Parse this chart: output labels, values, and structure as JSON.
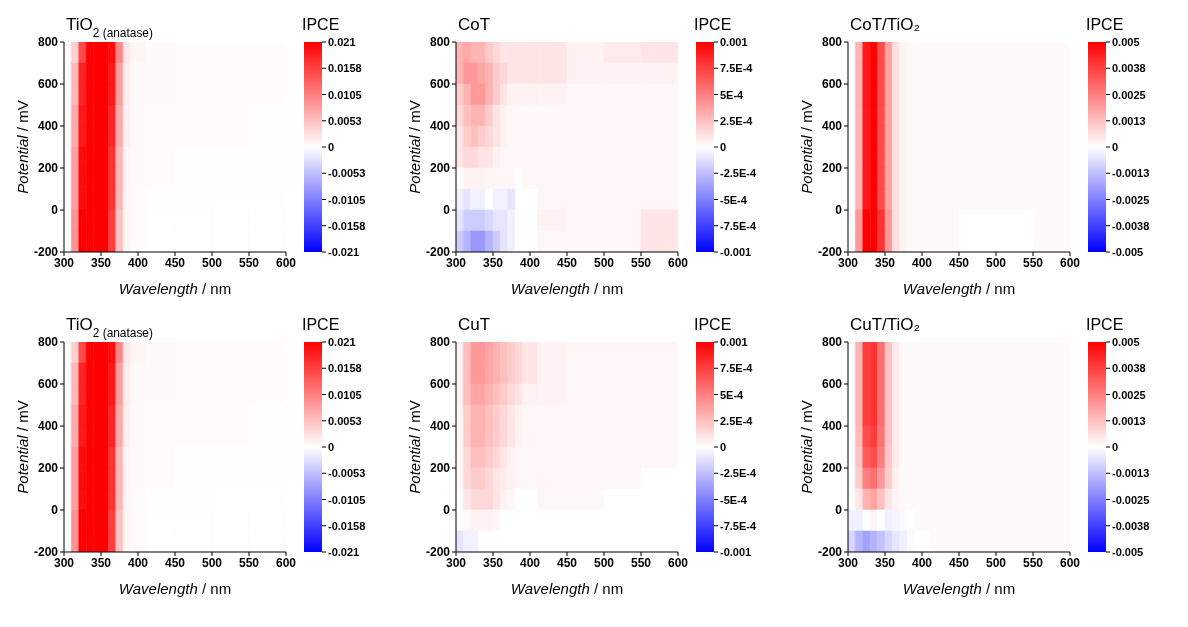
{
  "chart_data": [
    {
      "type": "heatmap",
      "title": "TiO$_{2 (anatase)}$",
      "xlabel": "Wavelength / nm",
      "ylabel": "Potential / mV",
      "clabel": "IPCE",
      "x": [
        305,
        315,
        325,
        335,
        345,
        355,
        365,
        375,
        385,
        395,
        425,
        475,
        525,
        575
      ],
      "y": [
        750,
        650,
        550,
        450,
        350,
        250,
        150,
        50,
        -50,
        -150
      ],
      "xlim": [
        300,
        600
      ],
      "xticks": [
        300,
        350,
        400,
        450,
        500,
        550,
        600
      ],
      "ylim": [
        -200,
        800
      ],
      "yticks": [
        -200,
        0,
        200,
        400,
        600,
        800
      ],
      "clim": [
        -0.021,
        0.021
      ],
      "cticks": [
        0.021,
        {
          "value": 0.01575,
          "label": "0.0158"
        },
        0.0105,
        {
          "value": 0.00525,
          "label": "0.0053"
        },
        0,
        {
          "value": -0.00525,
          "label": "-0.0053"
        },
        -0.0105,
        {
          "value": -0.01575,
          "label": "-0.0158"
        },
        -0.021
      ],
      "cells": [
        [
          0.0003,
          0.004,
          0.015,
          0.021,
          0.021,
          0.021,
          0.02,
          0.01,
          0.002,
          0.0008,
          0.0004,
          0.0003,
          0.0003,
          0.0003
        ],
        [
          0.0003,
          0.006,
          0.018,
          0.021,
          0.021,
          0.021,
          0.019,
          0.008,
          0.0015,
          0.0006,
          0.0004,
          0.0003,
          0.0003,
          0.0003
        ],
        [
          0.0003,
          0.006,
          0.018,
          0.021,
          0.021,
          0.021,
          0.019,
          0.008,
          0.0015,
          0.0006,
          0.0004,
          0.0003,
          0.0003,
          0.0003
        ],
        [
          0.0003,
          0.007,
          0.019,
          0.021,
          0.021,
          0.021,
          0.018,
          0.007,
          0.0012,
          0.0005,
          0.0003,
          0.0003,
          0.0003,
          0.0002
        ],
        [
          0.0003,
          0.007,
          0.019,
          0.021,
          0.021,
          0.021,
          0.018,
          0.007,
          0.0012,
          0.0005,
          0.0003,
          0.0003,
          0.0003,
          0.0002
        ],
        [
          0.0002,
          0.008,
          0.02,
          0.021,
          0.021,
          0.021,
          0.017,
          0.006,
          0.001,
          0.0004,
          0.0003,
          0.0002,
          0.0002,
          0.0002
        ],
        [
          0.0002,
          0.008,
          0.02,
          0.021,
          0.021,
          0.021,
          0.017,
          0.006,
          0.001,
          0.0004,
          0.0003,
          0.0002,
          0.0002,
          0.0002
        ],
        [
          0.0002,
          0.008,
          0.02,
          0.021,
          0.021,
          0.021,
          0.017,
          0.006,
          0.001,
          0.0003,
          0.0002,
          0.0002,
          0.0001,
          0.0001
        ],
        [
          0.0001,
          0.009,
          0.021,
          0.021,
          0.021,
          0.021,
          0.016,
          0.005,
          0.0008,
          0.0003,
          0,
          -0.0001,
          -0.0001,
          -0.0001
        ],
        [
          0.0001,
          0.009,
          0.021,
          0.021,
          0.021,
          0.021,
          0.016,
          0.005,
          0.0008,
          0.0003,
          0,
          -0.0001,
          -0.0001,
          -0.0001
        ]
      ]
    },
    {
      "type": "heatmap",
      "title": "CoT",
      "xlabel": "Wavelength / nm",
      "ylabel": "Potential / mV",
      "clabel": "IPCE",
      "x": [
        305,
        315,
        325,
        335,
        345,
        355,
        365,
        375,
        385,
        395,
        425,
        475,
        525,
        575
      ],
      "y": [
        750,
        650,
        550,
        450,
        350,
        250,
        150,
        50,
        -50,
        -150
      ],
      "xlim": [
        300,
        600
      ],
      "xticks": [
        300,
        350,
        400,
        450,
        500,
        550,
        600
      ],
      "ylim": [
        -200,
        800
      ],
      "yticks": [
        -200,
        0,
        200,
        400,
        600,
        800
      ],
      "clim": [
        -0.001,
        0.001
      ],
      "cticks": [
        0.001,
        {
          "value": 0.00075,
          "label": "7.5E-4"
        },
        {
          "value": 0.0005,
          "label": "5E-4"
        },
        {
          "value": 0.00025,
          "label": "2.5E-4"
        },
        0,
        {
          "value": -0.00025,
          "label": "-2.5E-4"
        },
        {
          "value": -0.0005,
          "label": "-5E-4"
        },
        {
          "value": -0.00075,
          "label": "-7.5E-4"
        },
        -0.001
      ],
      "cells": [
        [
          0.0003,
          0.00035,
          0.0003,
          0.0003,
          0.0002,
          0.00015,
          0.0001,
          0.0001,
          0.0001,
          0.0001,
          0.0001,
          5e-05,
          8e-05,
          0.0001
        ],
        [
          0.0003,
          0.0004,
          0.0004,
          0.00035,
          0.0003,
          0.0002,
          0.00015,
          0.0001,
          0.0001,
          0.0001,
          0.0001,
          5e-05,
          5e-05,
          5e-05
        ],
        [
          0.0002,
          0.0003,
          0.0004,
          0.0004,
          0.0003,
          0.0002,
          0.0001,
          5e-05,
          5e-05,
          5e-05,
          5e-05,
          3e-05,
          3e-05,
          3e-05
        ],
        [
          0.00015,
          0.00025,
          0.0003,
          0.0003,
          0.0002,
          0.0001,
          5e-05,
          3e-05,
          3e-05,
          3e-05,
          3e-05,
          3e-05,
          3e-05,
          3e-05
        ],
        [
          0.0001,
          0.0002,
          0.00025,
          0.0002,
          0.00015,
          0.0001,
          5e-05,
          3e-05,
          3e-05,
          3e-05,
          3e-05,
          3e-05,
          3e-05,
          3e-05
        ],
        [
          0.0001,
          0.00015,
          0.00015,
          0.0001,
          0.0001,
          5e-05,
          3e-05,
          3e-05,
          3e-05,
          3e-05,
          3e-05,
          3e-05,
          3e-05,
          3e-05
        ],
        [
          0,
          5e-05,
          5e-05,
          5e-05,
          3e-05,
          3e-05,
          3e-05,
          3e-05,
          0,
          3e-05,
          3e-05,
          3e-05,
          3e-05,
          3e-05
        ],
        [
          -5e-05,
          -0.0001,
          -5e-05,
          -5e-05,
          0,
          -5e-05,
          -5e-05,
          -0.0001,
          0,
          0,
          3e-05,
          3e-05,
          3e-05,
          3e-05
        ],
        [
          -0.0001,
          -0.0002,
          -0.0002,
          -0.0002,
          -0.00015,
          -0.0001,
          -0.0001,
          -5e-05,
          0,
          0,
          5e-05,
          3e-05,
          3e-05,
          0.0001
        ],
        [
          -0.0002,
          -0.0003,
          -0.0004,
          -0.0004,
          -0.0003,
          -0.0002,
          -0.0001,
          -5e-05,
          0,
          0,
          3e-05,
          3e-05,
          3e-05,
          0.0001
        ]
      ]
    },
    {
      "type": "heatmap",
      "title": "CoT/TiO₂",
      "xlabel": "Wavelength / nm",
      "ylabel": "Potential / mV",
      "clabel": "IPCE",
      "x": [
        305,
        315,
        325,
        335,
        345,
        355,
        365,
        375,
        385,
        395,
        425,
        475,
        525,
        575
      ],
      "y": [
        750,
        650,
        550,
        450,
        350,
        250,
        150,
        50,
        -50,
        -150
      ],
      "xlim": [
        300,
        600
      ],
      "xticks": [
        300,
        350,
        400,
        450,
        500,
        550,
        600
      ],
      "ylim": [
        -200,
        800
      ],
      "yticks": [
        -200,
        0,
        200,
        400,
        600,
        800
      ],
      "clim": [
        -0.005,
        0.005
      ],
      "cticks": [
        0.005,
        {
          "value": 0.00375,
          "label": "0.0038"
        },
        0.0025,
        {
          "value": 0.00125,
          "label": "0.0013"
        },
        0,
        {
          "value": -0.00125,
          "label": "-0.0013"
        },
        -0.0025,
        {
          "value": -0.00375,
          "label": "-0.0038"
        },
        -0.005
      ],
      "cells": [
        [
          0,
          0.0015,
          0.0045,
          0.005,
          0.0035,
          0.0018,
          0.0006,
          0.0002,
          0.0001,
          0.0001,
          0.0001,
          0.0001,
          0.0001,
          0.0001
        ],
        [
          0,
          0.0015,
          0.0045,
          0.005,
          0.0035,
          0.0018,
          0.0006,
          0.0002,
          0.0001,
          0.0001,
          0.0001,
          0.0001,
          0.0001,
          0.0001
        ],
        [
          0,
          0.0015,
          0.0045,
          0.005,
          0.0035,
          0.0018,
          0.0006,
          0.0002,
          0.0001,
          0.0001,
          0.0001,
          0.0001,
          0.0001,
          0.0001
        ],
        [
          0,
          0.0015,
          0.0045,
          0.005,
          0.0035,
          0.0018,
          0.0006,
          0.0002,
          0.0001,
          0.0001,
          0.0001,
          0.0001,
          0.0001,
          0.0001
        ],
        [
          0,
          0.0015,
          0.0045,
          0.005,
          0.0035,
          0.0018,
          0.0006,
          0.0002,
          0.0001,
          0.0001,
          0.0001,
          0.0001,
          0.0001,
          0.0001
        ],
        [
          0,
          0.0015,
          0.0045,
          0.005,
          0.0035,
          0.0018,
          0.0006,
          0.0002,
          0.0001,
          0.0001,
          0.0001,
          0.0001,
          0.0001,
          0.0001
        ],
        [
          0,
          0.0015,
          0.0045,
          0.005,
          0.0035,
          0.0018,
          0.0006,
          0.0002,
          0.0001,
          0.0001,
          0.0001,
          0.0001,
          0.0001,
          0.0001
        ],
        [
          0,
          0.0015,
          0.0045,
          0.005,
          0.0035,
          0.0018,
          0.0006,
          0.0002,
          0.0001,
          0.0001,
          0.0001,
          0.0001,
          0.0001,
          0.0001
        ],
        [
          0,
          0.002,
          0.005,
          0.005,
          0.004,
          0.002,
          0.0006,
          0.0002,
          0.0001,
          0.0001,
          0.0001,
          0,
          0,
          0.0001
        ],
        [
          0,
          0.002,
          0.005,
          0.005,
          0.004,
          0.002,
          0.0006,
          0.0002,
          0.0001,
          0.0001,
          0.0001,
          0,
          0,
          0.0001
        ]
      ]
    },
    {
      "type": "heatmap",
      "title": "TiO$_{2 (anatase)}$",
      "xlabel": "Wavelength / nm",
      "ylabel": "Potential / mV",
      "clabel": "IPCE",
      "x": [
        305,
        315,
        325,
        335,
        345,
        355,
        365,
        375,
        385,
        395,
        425,
        475,
        525,
        575
      ],
      "y": [
        750,
        650,
        550,
        450,
        350,
        250,
        150,
        50,
        -50,
        -150
      ],
      "xlim": [
        300,
        600
      ],
      "xticks": [
        300,
        350,
        400,
        450,
        500,
        550,
        600
      ],
      "ylim": [
        -200,
        800
      ],
      "yticks": [
        -200,
        0,
        200,
        400,
        600,
        800
      ],
      "clim": [
        -0.021,
        0.021
      ],
      "cticks": [
        0.021,
        {
          "value": 0.01575,
          "label": "0.0158"
        },
        0.0105,
        {
          "value": 0.00525,
          "label": "0.0053"
        },
        0,
        {
          "value": -0.00525,
          "label": "-0.0053"
        },
        -0.0105,
        {
          "value": -0.01575,
          "label": "-0.0158"
        },
        -0.021
      ],
      "cells": [
        [
          0.0003,
          0.004,
          0.015,
          0.021,
          0.021,
          0.021,
          0.02,
          0.01,
          0.002,
          0.0008,
          0.0004,
          0.0003,
          0.0003,
          0.0003
        ],
        [
          0.0003,
          0.006,
          0.018,
          0.021,
          0.021,
          0.021,
          0.019,
          0.008,
          0.0015,
          0.0006,
          0.0004,
          0.0003,
          0.0003,
          0.0003
        ],
        [
          0.0003,
          0.006,
          0.018,
          0.021,
          0.021,
          0.021,
          0.019,
          0.008,
          0.0015,
          0.0006,
          0.0004,
          0.0003,
          0.0003,
          0.0003
        ],
        [
          0.0003,
          0.007,
          0.019,
          0.021,
          0.021,
          0.021,
          0.018,
          0.007,
          0.0012,
          0.0005,
          0.0003,
          0.0003,
          0.0003,
          0.0002
        ],
        [
          0.0003,
          0.007,
          0.019,
          0.021,
          0.021,
          0.021,
          0.018,
          0.007,
          0.0012,
          0.0005,
          0.0003,
          0.0003,
          0.0003,
          0.0002
        ],
        [
          0.0002,
          0.008,
          0.02,
          0.021,
          0.021,
          0.021,
          0.017,
          0.006,
          0.001,
          0.0004,
          0.0003,
          0.0002,
          0.0002,
          0.0002
        ],
        [
          0.0002,
          0.008,
          0.02,
          0.021,
          0.021,
          0.021,
          0.017,
          0.006,
          0.001,
          0.0004,
          0.0003,
          0.0002,
          0.0002,
          0.0002
        ],
        [
          0.0002,
          0.008,
          0.02,
          0.021,
          0.021,
          0.021,
          0.017,
          0.006,
          0.001,
          0.0003,
          0.0002,
          0.0002,
          0.0001,
          0.0001
        ],
        [
          0.0001,
          0.009,
          0.021,
          0.021,
          0.021,
          0.021,
          0.016,
          0.005,
          0.0008,
          0.0003,
          0,
          -0.0001,
          -0.0001,
          -0.0001
        ],
        [
          0.0001,
          0.009,
          0.021,
          0.021,
          0.021,
          0.021,
          0.016,
          0.005,
          0.0008,
          0.0003,
          0,
          -0.0001,
          -0.0001,
          -0.0001
        ]
      ]
    },
    {
      "type": "heatmap",
      "title": "CuT",
      "xlabel": "Wavelength / nm",
      "ylabel": "Potential / mV",
      "clabel": "IPCE",
      "x": [
        305,
        315,
        325,
        335,
        345,
        355,
        365,
        375,
        385,
        395,
        425,
        475,
        525,
        575
      ],
      "y": [
        750,
        650,
        550,
        450,
        350,
        250,
        150,
        50,
        -50,
        -150
      ],
      "xlim": [
        300,
        600
      ],
      "xticks": [
        300,
        350,
        400,
        450,
        500,
        550,
        600
      ],
      "ylim": [
        -200,
        800
      ],
      "yticks": [
        -200,
        0,
        200,
        400,
        600,
        800
      ],
      "clim": [
        -0.001,
        0.001
      ],
      "cticks": [
        0.001,
        {
          "value": 0.00075,
          "label": "7.5E-4"
        },
        {
          "value": 0.0005,
          "label": "5E-4"
        },
        {
          "value": 0.00025,
          "label": "2.5E-4"
        },
        0,
        {
          "value": -0.00025,
          "label": "-2.5E-4"
        },
        {
          "value": -0.0005,
          "label": "-5E-4"
        },
        {
          "value": -0.00075,
          "label": "-7.5E-4"
        },
        -0.001
      ],
      "cells": [
        [
          5e-05,
          0.00025,
          0.0004,
          0.0004,
          0.00035,
          0.0003,
          0.00025,
          0.0002,
          0.00015,
          0.0001,
          5e-05,
          3e-05,
          3e-05,
          3e-05
        ],
        [
          5e-05,
          0.00025,
          0.0004,
          0.0004,
          0.00035,
          0.0003,
          0.00025,
          0.0002,
          0.00015,
          0.0001,
          5e-05,
          3e-05,
          3e-05,
          3e-05
        ],
        [
          5e-05,
          0.00025,
          0.00035,
          0.00035,
          0.0003,
          0.00025,
          0.0002,
          0.00015,
          0.0001,
          5e-05,
          5e-05,
          3e-05,
          3e-05,
          3e-05
        ],
        [
          3e-05,
          0.0002,
          0.0003,
          0.0003,
          0.00025,
          0.0002,
          0.00015,
          0.0001,
          5e-05,
          3e-05,
          3e-05,
          3e-05,
          3e-05,
          3e-05
        ],
        [
          3e-05,
          0.0002,
          0.0003,
          0.0003,
          0.00025,
          0.0002,
          0.00015,
          0.0001,
          5e-05,
          3e-05,
          3e-05,
          3e-05,
          3e-05,
          3e-05
        ],
        [
          3e-05,
          0.00015,
          0.00025,
          0.00025,
          0.0002,
          0.00015,
          0.0001,
          5e-05,
          3e-05,
          3e-05,
          3e-05,
          3e-05,
          3e-05,
          3e-05
        ],
        [
          3e-05,
          0.00015,
          0.0002,
          0.0002,
          0.00015,
          0.0001,
          8e-05,
          5e-05,
          3e-05,
          3e-05,
          3e-05,
          3e-05,
          3e-05,
          0
        ],
        [
          0,
          0.0001,
          0.00015,
          0.00015,
          0.00015,
          0.0001,
          5e-05,
          3e-05,
          0,
          0,
          3e-05,
          3e-05,
          0,
          0
        ],
        [
          0,
          3e-05,
          5e-05,
          5e-05,
          5e-05,
          3e-05,
          0,
          0,
          0,
          0,
          0,
          0,
          0,
          0
        ],
        [
          -0.0001,
          -5e-05,
          -5e-05,
          0,
          0,
          0,
          0,
          0,
          0,
          0,
          0,
          0,
          0,
          0
        ]
      ]
    },
    {
      "type": "heatmap",
      "title": "CuT/TiO₂",
      "xlabel": "Wavelength / nm",
      "ylabel": "Potential / mV",
      "clabel": "IPCE",
      "x": [
        305,
        315,
        325,
        335,
        345,
        355,
        365,
        375,
        385,
        395,
        425,
        475,
        525,
        575
      ],
      "y": [
        750,
        650,
        550,
        450,
        350,
        250,
        150,
        50,
        -50,
        -150
      ],
      "xlim": [
        300,
        600
      ],
      "xticks": [
        300,
        350,
        400,
        450,
        500,
        550,
        600
      ],
      "ylim": [
        -200,
        800
      ],
      "yticks": [
        -200,
        0,
        200,
        400,
        600,
        800
      ],
      "clim": [
        -0.005,
        0.005
      ],
      "cticks": [
        0.005,
        {
          "value": 0.00375,
          "label": "0.0038"
        },
        0.0025,
        {
          "value": 0.00125,
          "label": "0.0013"
        },
        0,
        {
          "value": -0.00125,
          "label": "-0.0013"
        },
        -0.0025,
        {
          "value": -0.00375,
          "label": "-0.0038"
        },
        -0.005
      ],
      "cells": [
        [
          0,
          0.0015,
          0.0038,
          0.004,
          0.0028,
          0.0012,
          0.0004,
          0.0001,
          0.0001,
          0.0001,
          0.0001,
          0.0001,
          0.0001,
          0.0001
        ],
        [
          0,
          0.0015,
          0.0038,
          0.004,
          0.0028,
          0.0012,
          0.0004,
          0.0001,
          0.0001,
          0.0001,
          0.0001,
          0.0001,
          0.0001,
          0.0001
        ],
        [
          0,
          0.0015,
          0.0038,
          0.004,
          0.0028,
          0.0012,
          0.0004,
          0.0001,
          0.0001,
          0.0001,
          0.0001,
          0.0001,
          0.0001,
          0.0001
        ],
        [
          0,
          0.0015,
          0.0038,
          0.004,
          0.0028,
          0.0012,
          0.0004,
          0.0001,
          0.0001,
          0.0001,
          0.0001,
          0.0001,
          0.0001,
          0.0001
        ],
        [
          0,
          0.0014,
          0.0035,
          0.0038,
          0.0027,
          0.0012,
          0.0004,
          0.0001,
          0.0001,
          0.0001,
          0.0001,
          0.0001,
          0.0001,
          0.0001
        ],
        [
          0,
          0.0012,
          0.0032,
          0.0035,
          0.0025,
          0.0011,
          0.0004,
          0.0001,
          0.0001,
          0.0001,
          0.0001,
          0.0001,
          0.0001,
          0.0001
        ],
        [
          0,
          0.001,
          0.0025,
          0.0028,
          0.002,
          0.001,
          0.0003,
          0.0001,
          0.0001,
          0.0001,
          0.0001,
          0.0001,
          0.0001,
          0.0001
        ],
        [
          0,
          0.0005,
          0.0015,
          0.0018,
          0.0012,
          0.0005,
          0.0002,
          0.0001,
          0.0001,
          0.0001,
          0.0001,
          0.0001,
          0.0001,
          0.0001
        ],
        [
          -0.0003,
          -0.0003,
          0,
          0.0002,
          0,
          -0.0003,
          -0.0002,
          -0.0001,
          0,
          0.0001,
          0.0001,
          0.0001,
          0.0001,
          0.0001
        ],
        [
          -0.0008,
          -0.0015,
          -0.0018,
          -0.0015,
          -0.0012,
          -0.0008,
          -0.0005,
          -0.0003,
          -0.0001,
          0,
          0.0001,
          0.0001,
          0.0001,
          0.0001
        ]
      ]
    }
  ]
}
